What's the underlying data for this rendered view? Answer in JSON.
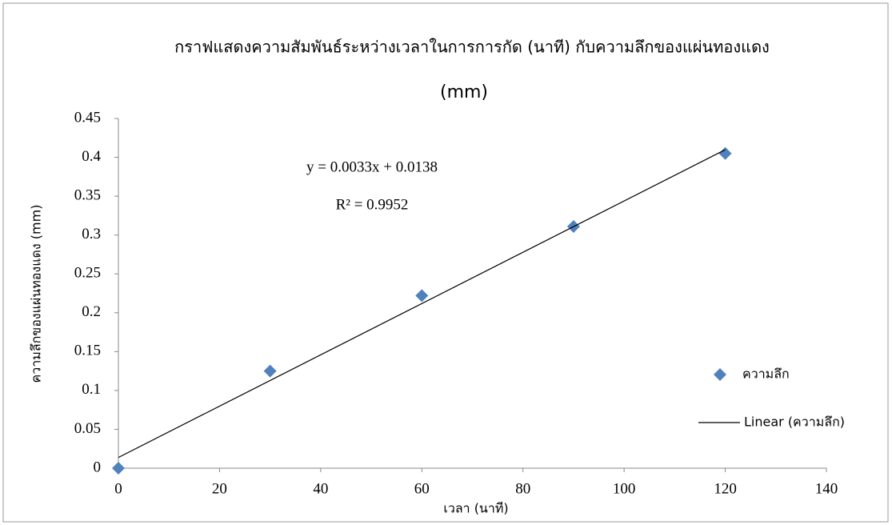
{
  "chart_data": {
    "type": "scatter",
    "title": [
      "กราฟแสดงความสัมพันธ์ระหว่างเวลาในการการกัด (นาที) กับความลึกของแผ่นทองแดง",
      "(mm)"
    ],
    "x_label": "เวลา (นาที)",
    "y_label": "ความลึกของแผ่นทองแดง (mm)",
    "annotations": [
      "y = 0.0033x + 0.0138",
      "R² = 0.9952"
    ],
    "series": [
      {
        "name": "ความลึก",
        "color": "#4f81bd",
        "mode": "markers",
        "x": [
          0,
          30,
          60,
          90,
          120
        ],
        "values": [
          0,
          0.125,
          0.222,
          0.311,
          0.405
        ]
      },
      {
        "name": "Linear (ความลึก)",
        "color": "#000000",
        "mode": "line",
        "x": [
          0,
          120
        ],
        "values": [
          0.0138,
          0.4098
        ]
      }
    ],
    "xlim": [
      0,
      140
    ],
    "xticks": [
      0,
      20,
      40,
      60,
      80,
      100,
      120,
      140
    ],
    "ylim": [
      0,
      0.45
    ],
    "yticks": [
      0,
      0.05,
      0.1,
      0.15,
      0.2,
      0.25,
      0.3,
      0.35,
      0.4,
      0.45
    ],
    "grid": false,
    "legend": "right"
  }
}
